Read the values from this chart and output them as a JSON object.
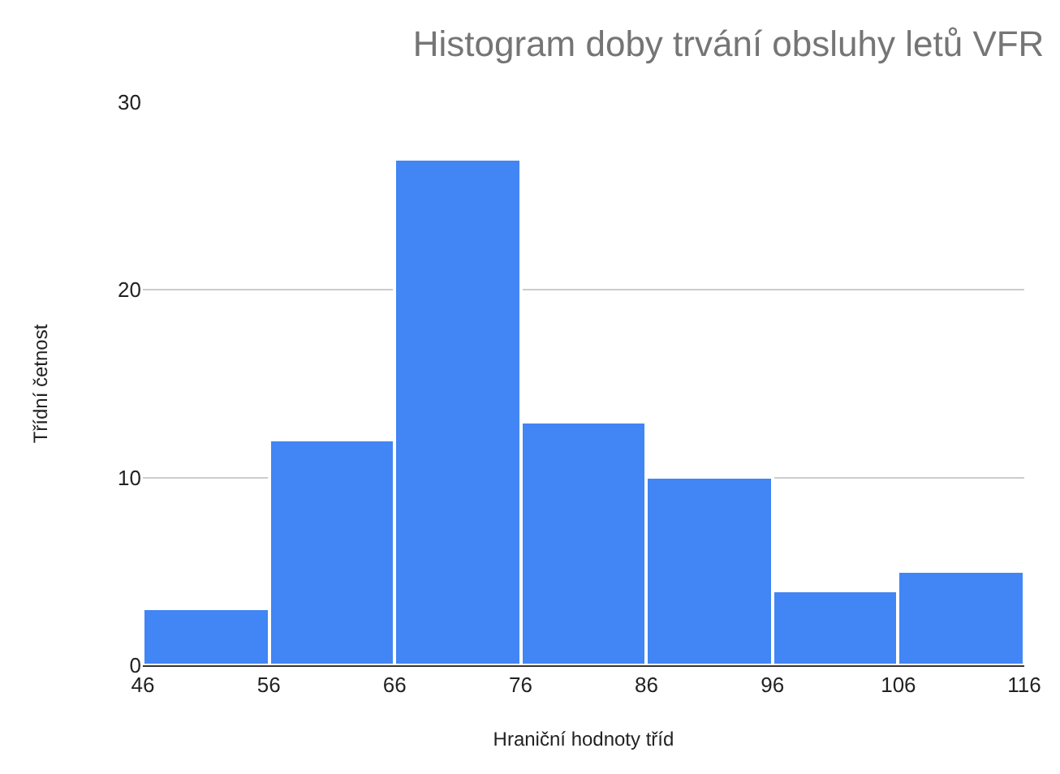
{
  "chart_data": {
    "type": "histogram",
    "title": "Histogram doby trvání obsluhy letů VFR",
    "xlabel": "Hraniční hodnoty tříd",
    "ylabel": "Třídní četnost",
    "bins": [
      46,
      56,
      66,
      76,
      86,
      96,
      106,
      116
    ],
    "values": [
      3,
      12,
      27,
      13,
      10,
      4,
      5
    ],
    "color": "#4285f4",
    "xlim": [
      46,
      116
    ],
    "xticks": [
      46,
      56,
      66,
      76,
      86,
      96,
      106,
      116
    ],
    "ylim": [
      0,
      30
    ],
    "yticks": [
      0,
      10,
      20,
      30
    ],
    "grid": "y"
  }
}
